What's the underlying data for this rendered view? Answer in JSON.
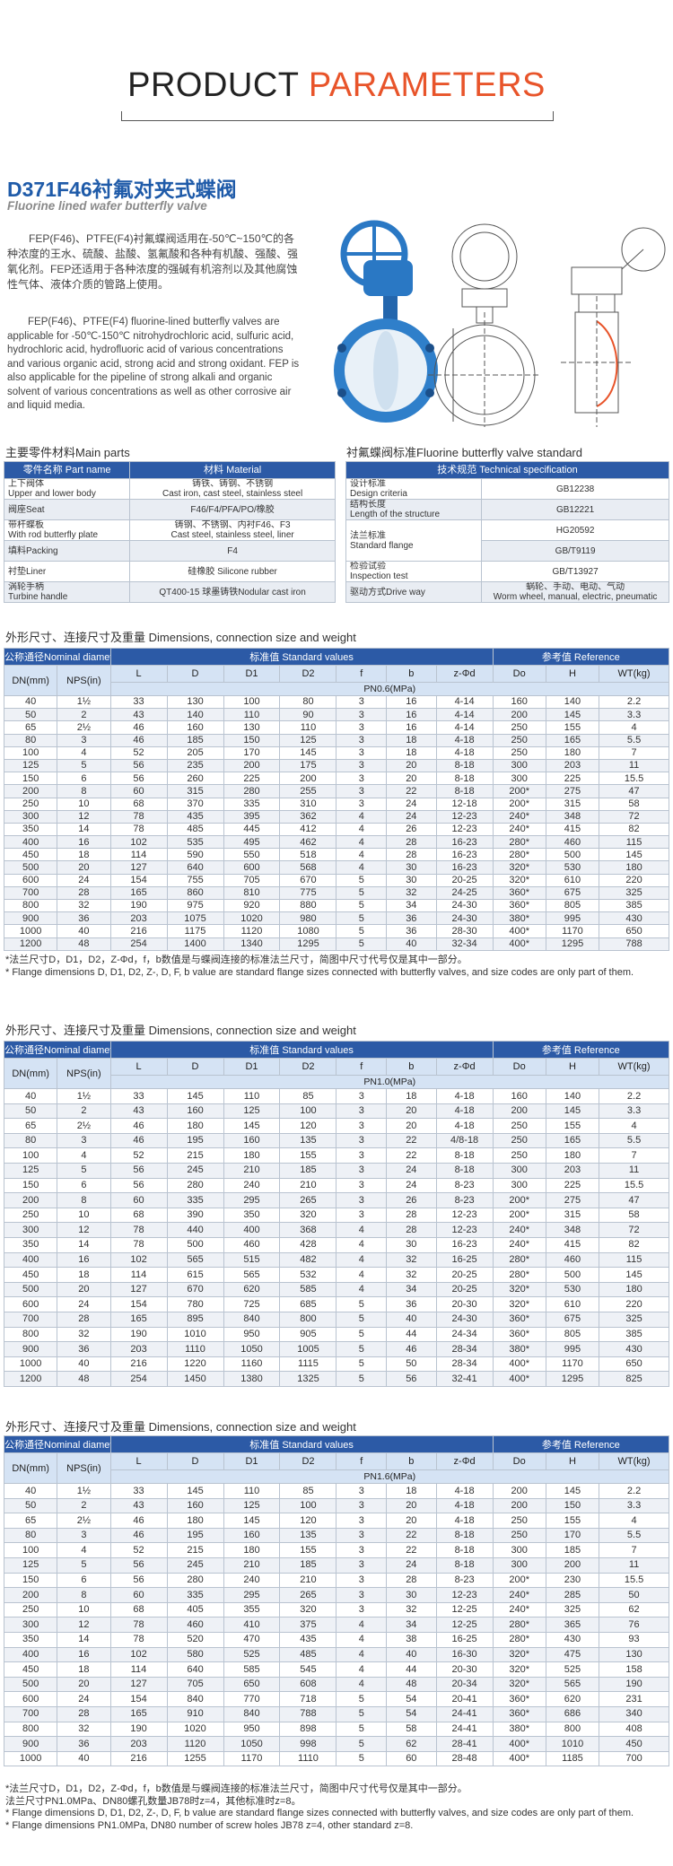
{
  "header": {
    "word1": "PRODUCT",
    "word2": "PARAMETERS"
  },
  "product": {
    "title": "D371F46衬氟对夹式蝶阀",
    "subtitle": "Fluorine lined wafer butterfly valve",
    "desc_cn": "FEP(F46)、PTFE(F4)衬氟蝶阀适用在-50℃~150℃的各种浓度的王水、硫酸、盐酸、氢氟酸和各种有机酸、强酸、强氧化剂。FEP还适用于各种浓度的强碱有机溶剂以及其他腐蚀性气体、液体介质的管路上使用。",
    "desc_en": "FEP(F46)、PTFE(F4) fluorine-lined butterfly valves are applicable for -50℃-150℃ nitrohydrochloric acid, sulfuric acid, hydrochloric acid, hydrofluoric acid of various concentrations and various organic acid, strong acid and strong oxidant. FEP is also applicable for the pipeline of strong alkali and organic solvent of various concentrations as well as other corrosive air and liquid media."
  },
  "parts": {
    "title": "主要零件材料Main parts",
    "columns": [
      "零件名称 Part name",
      "材料 Material"
    ],
    "rows": [
      [
        [
          "上下阀体",
          "Upper and lower body"
        ],
        [
          "铸铁、铸钢、不锈钢",
          "Cast iron, cast steel, stainless steel"
        ]
      ],
      [
        "阀座Seat",
        "F46/F4/PFA/PO/橡胶"
      ],
      [
        [
          "带杆蝶板",
          "With rod butterfly plate"
        ],
        [
          "铸钢、不锈钢、内衬F46、F3",
          "Cast steel, stainless steel, liner"
        ]
      ],
      [
        "填料Packing",
        "F4"
      ],
      [
        "衬垫Liner",
        "硅橡胶 Silicone rubber"
      ],
      [
        [
          "涡轮手柄",
          "Turbine handle"
        ],
        "QT400-15 球墨铸铁Nodular cast iron"
      ]
    ]
  },
  "standard": {
    "title": "衬氟蝶阀标准Fluorine butterfly valve standard",
    "column": "技术规范 Technical specification",
    "rows": [
      {
        "label": [
          "设计标准",
          "Design criteria"
        ],
        "values": [
          "GB12238"
        ]
      },
      {
        "label": [
          "结构长度",
          "Length of the structure"
        ],
        "values": [
          "GB12221"
        ]
      },
      {
        "label": [
          "法兰标准",
          "Standard flange"
        ],
        "values": [
          "HG20592",
          "GB/T9119"
        ]
      },
      {
        "label": [
          "检验试验",
          "Inspection test"
        ],
        "values": [
          "GB/T13927"
        ]
      },
      {
        "label": "驱动方式Drive way",
        "values": [
          [
            "蜗轮、手动、电动、气动",
            "Worm wheel, manual, electric, pneumatic"
          ]
        ]
      }
    ]
  },
  "dim_tables": [
    {
      "title": "外形尺寸、连接尺寸及重量 Dimensions, connection size and weight",
      "group_headers": [
        "公称通径Nominal diameter",
        "标准值 Standard values",
        "参考值 Reference"
      ],
      "columns": [
        "DN(mm)",
        "NPS(in)",
        "L",
        "D",
        "D1",
        "D2",
        "f",
        "b",
        "z-Φd",
        "Do",
        "H",
        "WT(kg)"
      ],
      "pressure": "PN0.6(MPa)",
      "rows": [
        [
          "40",
          "1½",
          "33",
          "130",
          "100",
          "80",
          "3",
          "16",
          "4-14",
          "160",
          "140",
          "2.2"
        ],
        [
          "50",
          "2",
          "43",
          "140",
          "110",
          "90",
          "3",
          "16",
          "4-14",
          "200",
          "145",
          "3.3"
        ],
        [
          "65",
          "2½",
          "46",
          "160",
          "130",
          "110",
          "3",
          "16",
          "4-14",
          "250",
          "155",
          "4"
        ],
        [
          "80",
          "3",
          "46",
          "185",
          "150",
          "125",
          "3",
          "18",
          "4-18",
          "250",
          "165",
          "5.5"
        ],
        [
          "100",
          "4",
          "52",
          "205",
          "170",
          "145",
          "3",
          "18",
          "4-18",
          "250",
          "180",
          "7"
        ],
        [
          "125",
          "5",
          "56",
          "235",
          "200",
          "175",
          "3",
          "20",
          "8-18",
          "300",
          "203",
          "11"
        ],
        [
          "150",
          "6",
          "56",
          "260",
          "225",
          "200",
          "3",
          "20",
          "8-18",
          "300",
          "225",
          "15.5"
        ],
        [
          "200",
          "8",
          "60",
          "315",
          "280",
          "255",
          "3",
          "22",
          "8-18",
          "200*",
          "275",
          "47"
        ],
        [
          "250",
          "10",
          "68",
          "370",
          "335",
          "310",
          "3",
          "24",
          "12-18",
          "200*",
          "315",
          "58"
        ],
        [
          "300",
          "12",
          "78",
          "435",
          "395",
          "362",
          "4",
          "24",
          "12-23",
          "240*",
          "348",
          "72"
        ],
        [
          "350",
          "14",
          "78",
          "485",
          "445",
          "412",
          "4",
          "26",
          "12-23",
          "240*",
          "415",
          "82"
        ],
        [
          "400",
          "16",
          "102",
          "535",
          "495",
          "462",
          "4",
          "28",
          "16-23",
          "280*",
          "460",
          "115"
        ],
        [
          "450",
          "18",
          "114",
          "590",
          "550",
          "518",
          "4",
          "28",
          "16-23",
          "280*",
          "500",
          "145"
        ],
        [
          "500",
          "20",
          "127",
          "640",
          "600",
          "568",
          "4",
          "30",
          "16-23",
          "320*",
          "530",
          "180"
        ],
        [
          "600",
          "24",
          "154",
          "755",
          "705",
          "670",
          "5",
          "30",
          "20-25",
          "320*",
          "610",
          "220"
        ],
        [
          "700",
          "28",
          "165",
          "860",
          "810",
          "775",
          "5",
          "32",
          "24-25",
          "360*",
          "675",
          "325"
        ],
        [
          "800",
          "32",
          "190",
          "975",
          "920",
          "880",
          "5",
          "34",
          "24-30",
          "360*",
          "805",
          "385"
        ],
        [
          "900",
          "36",
          "203",
          "1075",
          "1020",
          "980",
          "5",
          "36",
          "24-30",
          "380*",
          "995",
          "430"
        ],
        [
          "1000",
          "40",
          "216",
          "1175",
          "1120",
          "1080",
          "5",
          "36",
          "28-30",
          "400*",
          "1170",
          "650"
        ],
        [
          "1200",
          "48",
          "254",
          "1400",
          "1340",
          "1295",
          "5",
          "40",
          "32-34",
          "400*",
          "1295",
          "788"
        ]
      ],
      "notes": [
        "*法兰尺寸D，D1，D2，Z-Φd，f，b数值是与蝶阀连接的标准法兰尺寸，简图中尺寸代号仅是其中一部分。",
        "* Flange dimensions D, D1, D2, Z-, D, F, b value are standard flange sizes connected with butterfly valves, and size codes are only part of them."
      ]
    },
    {
      "title": "外形尺寸、连接尺寸及重量 Dimensions, connection size and weight",
      "group_headers": [
        "公称通径Nominal diameter",
        "标准值 Standard values",
        "参考值 Reference"
      ],
      "columns": [
        "DN(mm)",
        "NPS(in)",
        "L",
        "D",
        "D1",
        "D2",
        "f",
        "b",
        "z-Φd",
        "Do",
        "H",
        "WT(kg)"
      ],
      "pressure": "PN1.0(MPa)",
      "rows": [
        [
          "40",
          "1½",
          "33",
          "145",
          "110",
          "85",
          "3",
          "18",
          "4-18",
          "160",
          "140",
          "2.2"
        ],
        [
          "50",
          "2",
          "43",
          "160",
          "125",
          "100",
          "3",
          "20",
          "4-18",
          "200",
          "145",
          "3.3"
        ],
        [
          "65",
          "2½",
          "46",
          "180",
          "145",
          "120",
          "3",
          "20",
          "4-18",
          "250",
          "155",
          "4"
        ],
        [
          "80",
          "3",
          "46",
          "195",
          "160",
          "135",
          "3",
          "22",
          "4/8-18",
          "250",
          "165",
          "5.5"
        ],
        [
          "100",
          "4",
          "52",
          "215",
          "180",
          "155",
          "3",
          "22",
          "8-18",
          "250",
          "180",
          "7"
        ],
        [
          "125",
          "5",
          "56",
          "245",
          "210",
          "185",
          "3",
          "24",
          "8-18",
          "300",
          "203",
          "11"
        ],
        [
          "150",
          "6",
          "56",
          "280",
          "240",
          "210",
          "3",
          "24",
          "8-23",
          "300",
          "225",
          "15.5"
        ],
        [
          "200",
          "8",
          "60",
          "335",
          "295",
          "265",
          "3",
          "26",
          "8-23",
          "200*",
          "275",
          "47"
        ],
        [
          "250",
          "10",
          "68",
          "390",
          "350",
          "320",
          "3",
          "28",
          "12-23",
          "200*",
          "315",
          "58"
        ],
        [
          "300",
          "12",
          "78",
          "440",
          "400",
          "368",
          "4",
          "28",
          "12-23",
          "240*",
          "348",
          "72"
        ],
        [
          "350",
          "14",
          "78",
          "500",
          "460",
          "428",
          "4",
          "30",
          "16-23",
          "240*",
          "415",
          "82"
        ],
        [
          "400",
          "16",
          "102",
          "565",
          "515",
          "482",
          "4",
          "32",
          "16-25",
          "280*",
          "460",
          "115"
        ],
        [
          "450",
          "18",
          "114",
          "615",
          "565",
          "532",
          "4",
          "32",
          "20-25",
          "280*",
          "500",
          "145"
        ],
        [
          "500",
          "20",
          "127",
          "670",
          "620",
          "585",
          "4",
          "34",
          "20-25",
          "320*",
          "530",
          "180"
        ],
        [
          "600",
          "24",
          "154",
          "780",
          "725",
          "685",
          "5",
          "36",
          "20-30",
          "320*",
          "610",
          "220"
        ],
        [
          "700",
          "28",
          "165",
          "895",
          "840",
          "800",
          "5",
          "40",
          "24-30",
          "360*",
          "675",
          "325"
        ],
        [
          "800",
          "32",
          "190",
          "1010",
          "950",
          "905",
          "5",
          "44",
          "24-34",
          "360*",
          "805",
          "385"
        ],
        [
          "900",
          "36",
          "203",
          "1110",
          "1050",
          "1005",
          "5",
          "46",
          "28-34",
          "380*",
          "995",
          "430"
        ],
        [
          "1000",
          "40",
          "216",
          "1220",
          "1160",
          "1115",
          "5",
          "50",
          "28-34",
          "400*",
          "1170",
          "650"
        ],
        [
          "1200",
          "48",
          "254",
          "1450",
          "1380",
          "1325",
          "5",
          "56",
          "32-41",
          "400*",
          "1295",
          "825"
        ]
      ]
    },
    {
      "title": "外形尺寸、连接尺寸及重量 Dimensions, connection size and weight",
      "group_headers": [
        "公称通径Nominal diameter",
        "标准值 Standard values",
        "参考值 Reference"
      ],
      "columns": [
        "DN(mm)",
        "NPS(in)",
        "L",
        "D",
        "D1",
        "D2",
        "f",
        "b",
        "z-Φd",
        "Do",
        "H",
        "WT(kg)"
      ],
      "pressure": "PN1.6(MPa)",
      "rows": [
        [
          "40",
          "1½",
          "33",
          "145",
          "110",
          "85",
          "3",
          "18",
          "4-18",
          "200",
          "145",
          "2.2"
        ],
        [
          "50",
          "2",
          "43",
          "160",
          "125",
          "100",
          "3",
          "20",
          "4-18",
          "200",
          "150",
          "3.3"
        ],
        [
          "65",
          "2½",
          "46",
          "180",
          "145",
          "120",
          "3",
          "20",
          "4-18",
          "250",
          "155",
          "4"
        ],
        [
          "80",
          "3",
          "46",
          "195",
          "160",
          "135",
          "3",
          "22",
          "8-18",
          "250",
          "170",
          "5.5"
        ],
        [
          "100",
          "4",
          "52",
          "215",
          "180",
          "155",
          "3",
          "22",
          "8-18",
          "300",
          "185",
          "7"
        ],
        [
          "125",
          "5",
          "56",
          "245",
          "210",
          "185",
          "3",
          "24",
          "8-18",
          "300",
          "200",
          "11"
        ],
        [
          "150",
          "6",
          "56",
          "280",
          "240",
          "210",
          "3",
          "28",
          "8-23",
          "200*",
          "230",
          "15.5"
        ],
        [
          "200",
          "8",
          "60",
          "335",
          "295",
          "265",
          "3",
          "30",
          "12-23",
          "240*",
          "285",
          "50"
        ],
        [
          "250",
          "10",
          "68",
          "405",
          "355",
          "320",
          "3",
          "32",
          "12-25",
          "240*",
          "325",
          "62"
        ],
        [
          "300",
          "12",
          "78",
          "460",
          "410",
          "375",
          "4",
          "34",
          "12-25",
          "280*",
          "365",
          "76"
        ],
        [
          "350",
          "14",
          "78",
          "520",
          "470",
          "435",
          "4",
          "38",
          "16-25",
          "280*",
          "430",
          "93"
        ],
        [
          "400",
          "16",
          "102",
          "580",
          "525",
          "485",
          "4",
          "40",
          "16-30",
          "320*",
          "475",
          "130"
        ],
        [
          "450",
          "18",
          "114",
          "640",
          "585",
          "545",
          "4",
          "44",
          "20-30",
          "320*",
          "525",
          "158"
        ],
        [
          "500",
          "20",
          "127",
          "705",
          "650",
          "608",
          "4",
          "48",
          "20-34",
          "320*",
          "565",
          "190"
        ],
        [
          "600",
          "24",
          "154",
          "840",
          "770",
          "718",
          "5",
          "54",
          "20-41",
          "360*",
          "620",
          "231"
        ],
        [
          "700",
          "28",
          "165",
          "910",
          "840",
          "788",
          "5",
          "54",
          "24-41",
          "360*",
          "686",
          "340"
        ],
        [
          "800",
          "32",
          "190",
          "1020",
          "950",
          "898",
          "5",
          "58",
          "24-41",
          "380*",
          "800",
          "408"
        ],
        [
          "900",
          "36",
          "203",
          "1120",
          "1050",
          "998",
          "5",
          "62",
          "28-41",
          "400*",
          "1010",
          "450"
        ],
        [
          "1000",
          "40",
          "216",
          "1255",
          "1170",
          "1110",
          "5",
          "60",
          "28-48",
          "400*",
          "1185",
          "700"
        ]
      ],
      "notes": [
        "*法兰尺寸D，D1，D2，Z-Φd，f，b数值是与蝶阀连接的标准法兰尺寸，简图中尺寸代号仅是其中一部分。",
        "法兰尺寸PN1.0MPa、DN80螺孔数量JB78时z=4，其他标准时z=8。",
        "* Flange dimensions D, D1, D2, Z-, D, F, b value are standard flange sizes connected with butterfly valves, and size codes are only part of them.",
        "* Flange dimensions PN1.0MPa, DN80 number of screw holes JB78 z=4, other standard z=8."
      ]
    }
  ]
}
